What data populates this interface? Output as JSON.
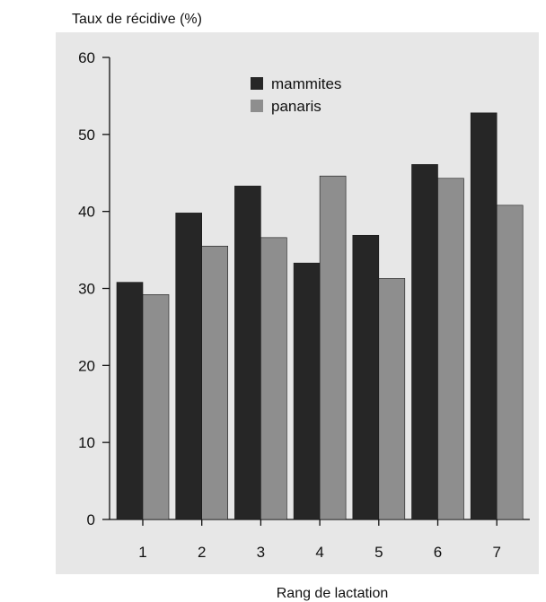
{
  "chart_data": {
    "type": "bar",
    "ylabel": "Taux de récidive (%)",
    "xlabel": "Rang de lactation",
    "categories": [
      "1",
      "2",
      "3",
      "4",
      "5",
      "6",
      "7"
    ],
    "series": [
      {
        "name": "mammites",
        "values": [
          30.8,
          39.8,
          43.3,
          33.3,
          36.9,
          46.1,
          52.8
        ],
        "color": "#262626"
      },
      {
        "name": "panaris",
        "values": [
          29.2,
          35.5,
          36.6,
          44.6,
          31.3,
          44.3,
          40.8
        ],
        "color": "#8e8e8e"
      }
    ],
    "ylim": [
      0,
      60
    ],
    "yticks": [
      "0",
      "10",
      "20",
      "30",
      "40",
      "50",
      "60"
    ],
    "grid": false,
    "legend_position": "top-center",
    "background_color": "#e7e7e7"
  }
}
